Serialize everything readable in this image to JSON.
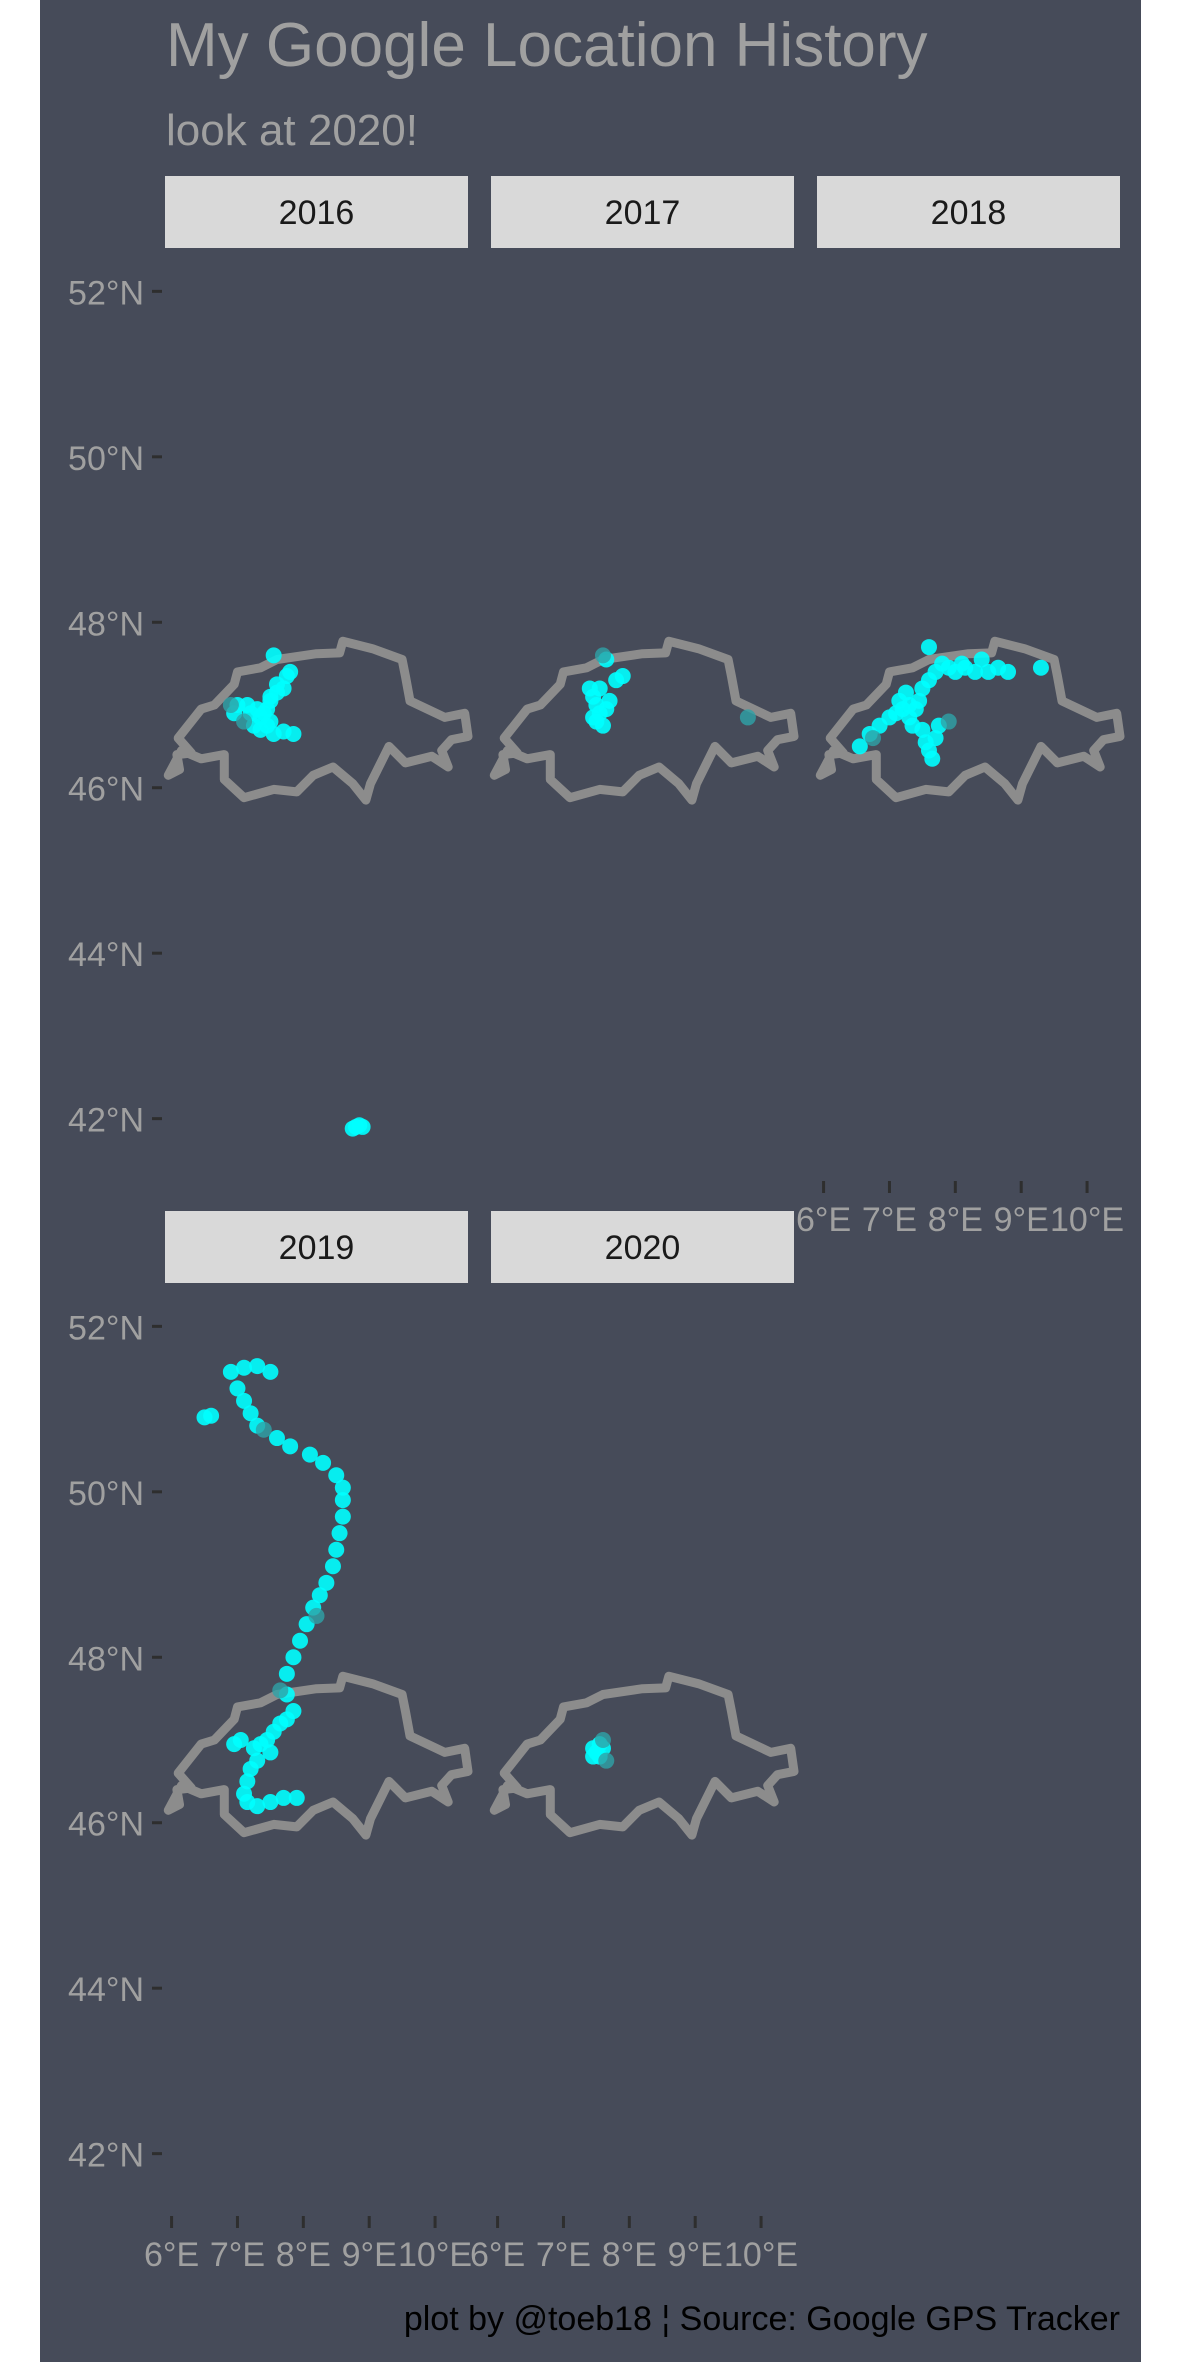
{
  "colors": {
    "panel_bg": "#464b59",
    "text": "#a0a0a0",
    "tick": "#2e2e2e",
    "strip_bg": "#d9d9d9",
    "strip_text": "#1a1a1a",
    "border": "#8c8c8c",
    "points": "#00ffff",
    "points_dark": "#2ea3a8",
    "caption": "#000000"
  },
  "chart_data": {
    "type": "scatter",
    "title": "My Google Location History",
    "subtitle": "look at 2020!",
    "caption": "plot by @toeb18 ¦ Source: Google GPS Tracker",
    "x_label": "",
    "y_label": "",
    "xlim": [
      5.9,
      10.5
    ],
    "ylim": [
      41.5,
      52.5
    ],
    "x_ticks": [
      6,
      7,
      8,
      9,
      10
    ],
    "x_tick_labels": [
      "6°E",
      "7°E",
      "8°E",
      "9°E",
      "10°E"
    ],
    "y_ticks": [
      42,
      44,
      46,
      48,
      50,
      52
    ],
    "y_tick_labels": [
      "42°N",
      "44°N",
      "46°N",
      "48°N",
      "50°N",
      "52°N"
    ],
    "facet_by": "year",
    "grid": false,
    "border_outline": [
      [
        5.95,
        46.15
      ],
      [
        6.12,
        46.22
      ],
      [
        6.08,
        46.4
      ],
      [
        6.3,
        46.42
      ],
      [
        6.1,
        46.6
      ],
      [
        6.45,
        46.95
      ],
      [
        6.65,
        47.0
      ],
      [
        6.95,
        47.25
      ],
      [
        7.0,
        47.4
      ],
      [
        7.35,
        47.45
      ],
      [
        7.6,
        47.55
      ],
      [
        8.2,
        47.62
      ],
      [
        8.55,
        47.63
      ],
      [
        8.6,
        47.77
      ],
      [
        9.05,
        47.68
      ],
      [
        9.5,
        47.55
      ],
      [
        9.55,
        47.35
      ],
      [
        9.62,
        47.05
      ],
      [
        9.88,
        46.95
      ],
      [
        10.15,
        46.85
      ],
      [
        10.45,
        46.9
      ],
      [
        10.5,
        46.62
      ],
      [
        10.25,
        46.58
      ],
      [
        10.1,
        46.45
      ],
      [
        10.2,
        46.25
      ],
      [
        9.95,
        46.38
      ],
      [
        9.55,
        46.3
      ],
      [
        9.3,
        46.5
      ],
      [
        9.02,
        46.05
      ],
      [
        8.95,
        45.85
      ],
      [
        8.75,
        46.05
      ],
      [
        8.45,
        46.25
      ],
      [
        8.15,
        46.15
      ],
      [
        7.9,
        45.95
      ],
      [
        7.55,
        45.98
      ],
      [
        7.1,
        45.88
      ],
      [
        6.8,
        46.1
      ],
      [
        6.8,
        46.4
      ],
      [
        6.45,
        46.35
      ],
      [
        6.15,
        46.45
      ],
      [
        6.05,
        46.3
      ],
      [
        5.95,
        46.15
      ]
    ],
    "panels": [
      {
        "year": "2016",
        "points": [
          [
            7.3,
            46.95
          ],
          [
            7.35,
            46.85
          ],
          [
            7.4,
            46.9
          ],
          [
            7.45,
            46.95
          ],
          [
            7.25,
            46.75
          ],
          [
            7.45,
            46.75
          ],
          [
            7.5,
            46.8
          ],
          [
            7.2,
            46.9
          ],
          [
            7.15,
            47.0
          ],
          [
            7.5,
            47.05
          ],
          [
            7.6,
            47.15
          ],
          [
            7.7,
            47.2
          ],
          [
            7.75,
            47.35
          ],
          [
            7.8,
            47.4
          ],
          [
            7.6,
            47.25
          ],
          [
            7.5,
            47.1
          ],
          [
            7.35,
            46.7
          ],
          [
            7.55,
            46.65
          ],
          [
            7.7,
            46.68
          ],
          [
            7.85,
            46.65
          ],
          [
            7.0,
            47.0
          ],
          [
            6.95,
            46.9
          ],
          [
            7.55,
            47.6
          ],
          [
            8.8,
            41.9
          ],
          [
            8.85,
            41.92
          ],
          [
            8.9,
            41.9
          ],
          [
            8.75,
            41.88
          ]
        ],
        "dark_points": [
          [
            6.9,
            47.0
          ],
          [
            7.1,
            46.8
          ]
        ]
      },
      {
        "year": "2017",
        "points": [
          [
            7.45,
            47.1
          ],
          [
            7.5,
            47.0
          ],
          [
            7.55,
            46.9
          ],
          [
            7.45,
            46.85
          ],
          [
            7.5,
            46.8
          ],
          [
            7.6,
            46.75
          ],
          [
            7.65,
            46.95
          ],
          [
            7.4,
            47.2
          ],
          [
            7.55,
            47.2
          ],
          [
            7.7,
            47.05
          ],
          [
            7.8,
            47.3
          ],
          [
            7.9,
            47.35
          ],
          [
            7.65,
            47.55
          ]
        ],
        "dark_points": [
          [
            9.8,
            46.85
          ],
          [
            7.6,
            47.6
          ]
        ]
      },
      {
        "year": "2018",
        "points": [
          [
            6.55,
            46.5
          ],
          [
            6.7,
            46.65
          ],
          [
            6.85,
            46.75
          ],
          [
            7.0,
            46.85
          ],
          [
            7.1,
            46.9
          ],
          [
            7.2,
            46.95
          ],
          [
            7.3,
            47.0
          ],
          [
            7.4,
            46.95
          ],
          [
            7.3,
            46.85
          ],
          [
            7.35,
            46.75
          ],
          [
            7.5,
            46.7
          ],
          [
            7.55,
            46.55
          ],
          [
            7.6,
            46.45
          ],
          [
            7.65,
            46.35
          ],
          [
            7.7,
            46.6
          ],
          [
            7.75,
            46.75
          ],
          [
            7.45,
            47.05
          ],
          [
            7.5,
            47.2
          ],
          [
            7.6,
            47.3
          ],
          [
            7.7,
            47.4
          ],
          [
            7.8,
            47.5
          ],
          [
            7.9,
            47.45
          ],
          [
            8.0,
            47.4
          ],
          [
            8.15,
            47.45
          ],
          [
            8.3,
            47.4
          ],
          [
            8.5,
            47.4
          ],
          [
            8.65,
            47.45
          ],
          [
            8.8,
            47.4
          ],
          [
            9.3,
            47.45
          ],
          [
            7.6,
            47.7
          ],
          [
            8.1,
            47.5
          ],
          [
            8.4,
            47.55
          ],
          [
            7.25,
            47.15
          ],
          [
            7.15,
            47.05
          ]
        ],
        "dark_points": [
          [
            7.9,
            46.8
          ],
          [
            6.75,
            46.6
          ]
        ]
      },
      {
        "year": "2019",
        "points": [
          [
            7.25,
            46.9
          ],
          [
            7.35,
            46.95
          ],
          [
            7.45,
            47.0
          ],
          [
            7.5,
            46.85
          ],
          [
            7.3,
            46.75
          ],
          [
            7.2,
            46.65
          ],
          [
            7.15,
            46.5
          ],
          [
            7.1,
            46.35
          ],
          [
            7.15,
            46.25
          ],
          [
            7.3,
            46.2
          ],
          [
            7.5,
            46.25
          ],
          [
            7.7,
            46.3
          ],
          [
            7.9,
            46.3
          ],
          [
            7.05,
            47.0
          ],
          [
            6.95,
            46.95
          ],
          [
            7.55,
            47.1
          ],
          [
            7.65,
            47.2
          ],
          [
            7.75,
            47.25
          ],
          [
            7.85,
            47.35
          ],
          [
            7.75,
            47.55
          ],
          [
            7.75,
            47.8
          ],
          [
            7.85,
            48.0
          ],
          [
            7.95,
            48.2
          ],
          [
            8.05,
            48.4
          ],
          [
            8.15,
            48.6
          ],
          [
            8.25,
            48.75
          ],
          [
            8.35,
            48.9
          ],
          [
            8.45,
            49.1
          ],
          [
            8.5,
            49.3
          ],
          [
            8.55,
            49.5
          ],
          [
            8.6,
            49.7
          ],
          [
            8.6,
            49.9
          ],
          [
            8.6,
            50.05
          ],
          [
            8.5,
            50.2
          ],
          [
            8.3,
            50.35
          ],
          [
            8.1,
            50.45
          ],
          [
            7.8,
            50.55
          ],
          [
            7.6,
            50.65
          ],
          [
            7.3,
            50.8
          ],
          [
            7.2,
            50.95
          ],
          [
            7.1,
            51.1
          ],
          [
            7.0,
            51.25
          ],
          [
            6.9,
            51.45
          ],
          [
            7.1,
            51.5
          ],
          [
            7.3,
            51.52
          ],
          [
            7.5,
            51.45
          ],
          [
            6.5,
            50.9
          ],
          [
            6.6,
            50.92
          ]
        ],
        "dark_points": [
          [
            7.4,
            50.75
          ],
          [
            8.2,
            48.5
          ],
          [
            7.65,
            47.6
          ]
        ]
      },
      {
        "year": "2020",
        "points": [
          [
            7.45,
            46.9
          ],
          [
            7.5,
            46.85
          ],
          [
            7.55,
            46.95
          ],
          [
            7.6,
            46.9
          ],
          [
            7.55,
            46.8
          ],
          [
            7.45,
            46.8
          ]
        ],
        "dark_points": [
          [
            7.65,
            46.75
          ],
          [
            7.6,
            47.0
          ]
        ]
      }
    ]
  }
}
